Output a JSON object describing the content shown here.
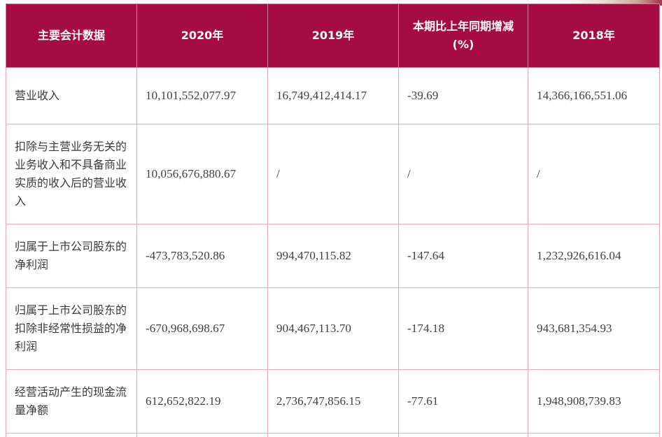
{
  "table": {
    "headers": [
      "主要会计数据",
      "2020年",
      "2019年",
      "本期比上年同期增减(%)",
      "2018年"
    ],
    "rows": [
      {
        "label": "营业收入",
        "v2020": "10,101,552,077.97",
        "v2019": "16,749,412,414.17",
        "change": "-39.69",
        "v2018": "14,366,166,551.06"
      },
      {
        "label": "扣除与主营业务无关的业务收入和不具备商业实质的收入后的营业收入",
        "v2020": "10,056,676,880.67",
        "v2019": "/",
        "change": "/",
        "v2018": "/"
      },
      {
        "label": "归属于上市公司股东的净利润",
        "v2020": "-473,783,520.86",
        "v2019": "994,470,115.82",
        "change": "-147.64",
        "v2018": "1,232,926,616.04"
      },
      {
        "label": "归属于上市公司股东的扣除非经常性损益的净利润",
        "v2020": "-670,968,698.67",
        "v2019": "904,467,113.70",
        "change": "-174.18",
        "v2018": "943,681,354.93"
      },
      {
        "label": "经营活动产生的现金流量净额",
        "v2020": "612,652,822.19",
        "v2019": "2,736,747,856.15",
        "change": "-77.61",
        "v2018": "1,948,908,739.83"
      }
    ]
  },
  "colors": {
    "header_bg": "#a50c43",
    "header_text": "#ffffff",
    "border": "#e7a8c0",
    "body_text": "#3a3a3a"
  }
}
